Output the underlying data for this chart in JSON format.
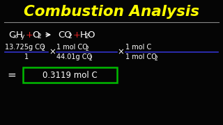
{
  "background_color": "#050505",
  "title": "Combustion Analysis",
  "title_color": "#FFFF00",
  "title_fontsize": 15.5,
  "separator_color": "#888888",
  "text_color": "#FFFFFF",
  "plus_color": "#DD2222",
  "line_color": "#3333CC",
  "result_box_color": "#00BB00",
  "fraction_numerator": "13.725g CO",
  "fraction_numerator_sub": "2",
  "fraction_denominator": "1",
  "frac2_numerator": "1 mol CO",
  "frac2_numerator_sub": "2",
  "frac2_denominator": "44.01g CO",
  "frac2_denominator_sub": "2",
  "frac3_numerator": "1 mol C",
  "frac3_denominator": "1 mol CO",
  "frac3_denominator_sub": "2",
  "result_text": "0.3119 mol C",
  "eq_CxHy": "C",
  "eq_x": "x",
  "eq_Hy": "H",
  "eq_y": "y",
  "eq_O2": "O",
  "eq_2a": "2",
  "eq_CO2": "CO",
  "eq_2b": "2",
  "eq_H2O_H": "H",
  "eq_2c": "2",
  "eq_H2O_O": "O"
}
